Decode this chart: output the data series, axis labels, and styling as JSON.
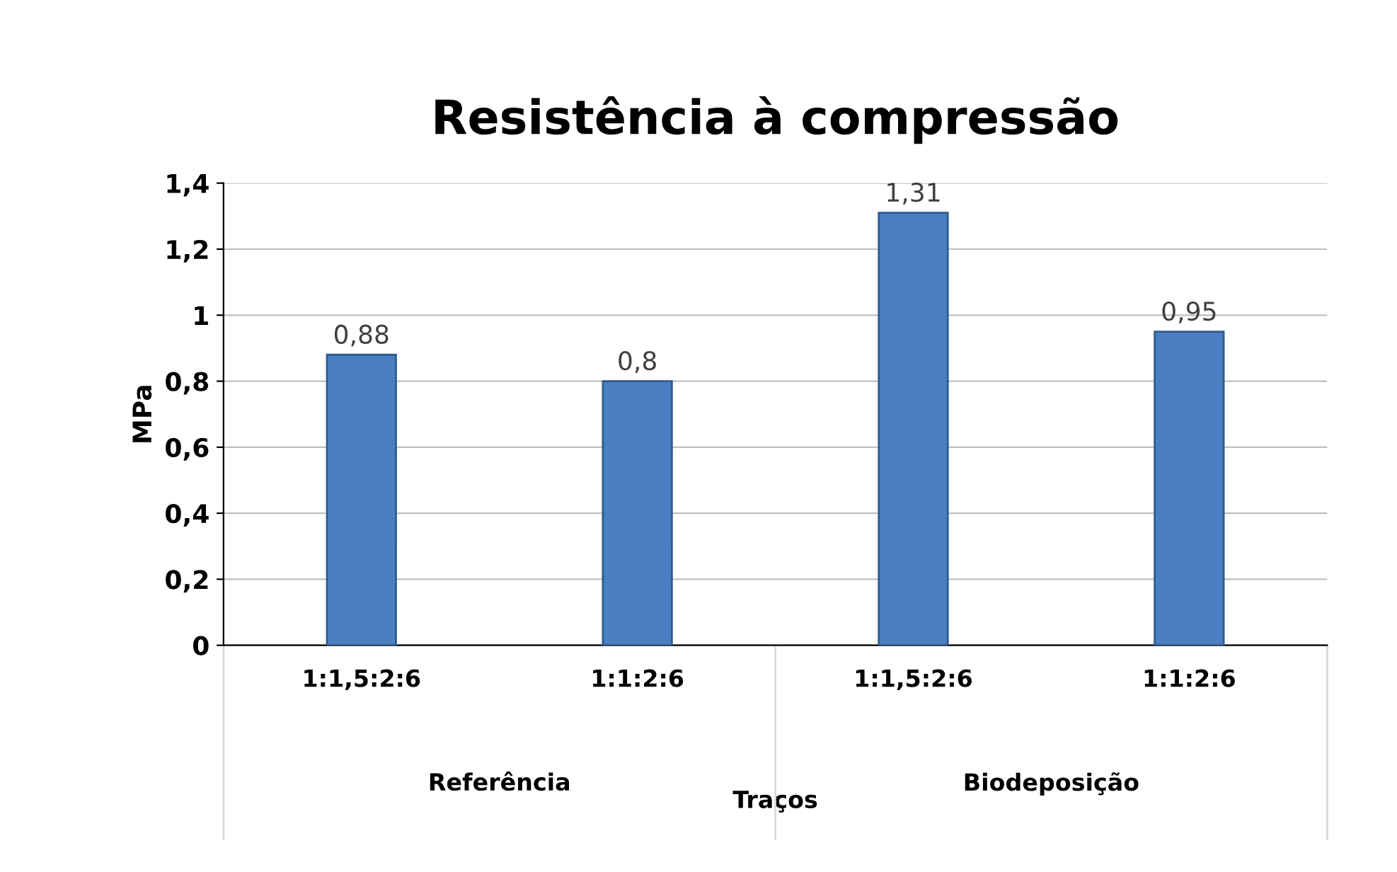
{
  "chart_data": {
    "type": "bar",
    "title": "Resistência à compressão",
    "xlabel": "Traços",
    "ylabel": "MPa",
    "categories": [
      "1:1,5:2:6",
      "1:1:2:6",
      "1:1,5:2:6",
      "1:1:2:6"
    ],
    "annotations": [
      "Referência",
      "Biodeposição"
    ],
    "values": [
      0.88,
      0.8,
      1.31,
      0.95
    ],
    "value_labels": [
      "0,88",
      "0,8",
      "1,31",
      "0,95"
    ],
    "color": "#4a7fc1",
    "ylim": [
      0,
      1.4
    ],
    "yticks": [
      0,
      {
        "value": 0.2,
        "label": "0,2"
      },
      {
        "value": 0.4,
        "label": "0,4"
      },
      {
        "value": 0.6,
        "label": "0,6"
      },
      {
        "value": 0.8,
        "label": "0,8"
      },
      1,
      {
        "value": 1.2,
        "label": "1,2"
      },
      {
        "value": 1.4,
        "label": "1,4"
      }
    ],
    "grid": "y"
  }
}
